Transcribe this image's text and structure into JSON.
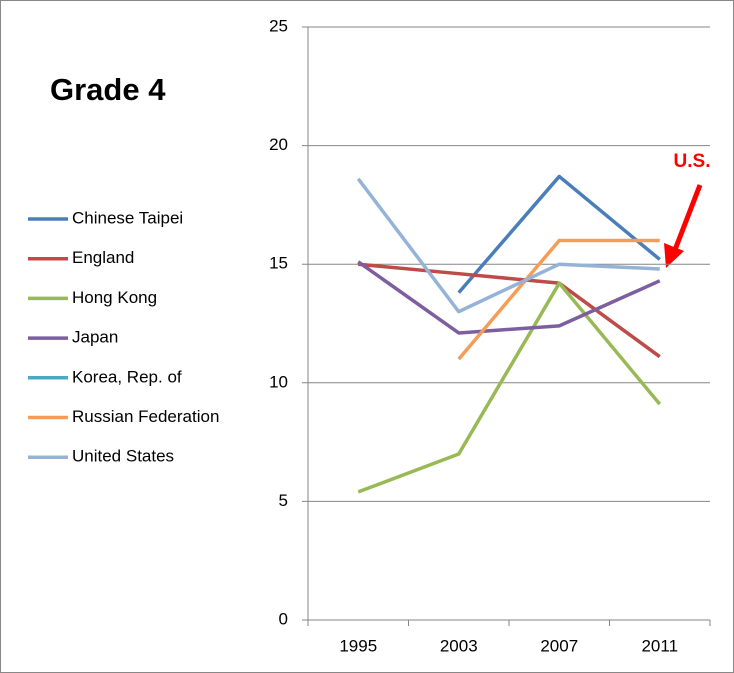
{
  "chart_data": {
    "type": "line",
    "title": "Grade 4",
    "annotation": "U.S.",
    "categories": [
      "1995",
      "2003",
      "2007",
      "2011"
    ],
    "series": [
      {
        "name": "Chinese Taipei",
        "color": "#4a7ebb",
        "values": [
          null,
          13.8,
          18.7,
          15.2
        ]
      },
      {
        "name": "England",
        "color": "#be4b48",
        "values": [
          15.0,
          14.6,
          14.2,
          11.1
        ]
      },
      {
        "name": "Hong Kong",
        "color": "#98b954",
        "values": [
          5.4,
          7.0,
          14.2,
          9.1
        ]
      },
      {
        "name": "Japan",
        "color": "#7d5fa0",
        "values": [
          15.1,
          12.1,
          12.4,
          14.3
        ]
      },
      {
        "name": "Korea, Rep. of",
        "color": "#46aac5",
        "values": [
          null,
          null,
          null,
          null
        ]
      },
      {
        "name": "Russian Federation",
        "color": "#f59d56",
        "values": [
          null,
          11.0,
          16.0,
          16.0
        ]
      },
      {
        "name": "United States",
        "color": "#95b3d7",
        "values": [
          18.6,
          13.0,
          15.0,
          14.8
        ]
      }
    ],
    "ylim": [
      0,
      25
    ],
    "yticks": [
      0,
      5,
      10,
      15,
      20,
      25
    ],
    "grid": true
  }
}
